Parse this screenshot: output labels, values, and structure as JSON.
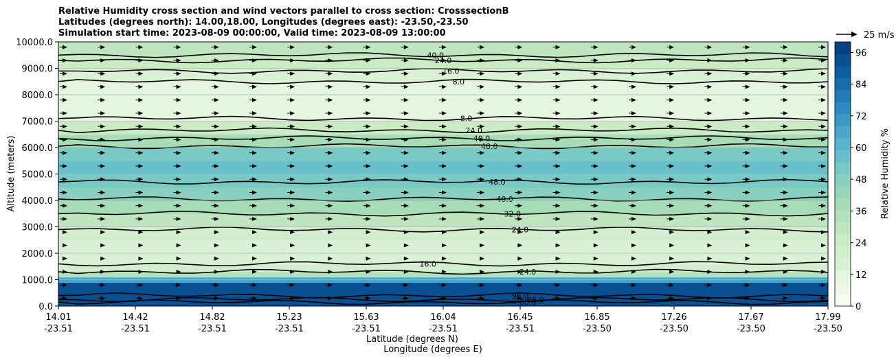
{
  "title_lines": [
    "Relative Humidity cross section and wind vectors parallel to cross section: CrosssectionB",
    "Latitudes (degrees north): 14.00,18.00, Longitudes (degrees east): -23.50,-23.50",
    "Simulation start time: 2023-08-09 00:00:00, Valid time: 2023-08-09 13:00:00"
  ],
  "chart_data": {
    "type": "heatmap",
    "title": "Relative Humidity cross section and wind vectors parallel to cross section: CrosssectionB",
    "xlabel": "Latitude (degrees N)",
    "xlabel2": "Longitude (degrees E)",
    "ylabel": "Altitude (meters)",
    "x_ticks": [
      {
        "lat": "14.01",
        "lon": "-23.51"
      },
      {
        "lat": "14.42",
        "lon": "-23.51"
      },
      {
        "lat": "14.82",
        "lon": "-23.51"
      },
      {
        "lat": "15.23",
        "lon": "-23.51"
      },
      {
        "lat": "15.63",
        "lon": "-23.51"
      },
      {
        "lat": "16.04",
        "lon": "-23.51"
      },
      {
        "lat": "16.45",
        "lon": "-23.51"
      },
      {
        "lat": "16.85",
        "lon": "-23.50"
      },
      {
        "lat": "17.26",
        "lon": "-23.50"
      },
      {
        "lat": "17.67",
        "lon": "-23.50"
      },
      {
        "lat": "17.99",
        "lon": "-23.50"
      }
    ],
    "xlim": [
      14.01,
      17.99
    ],
    "y_ticks": [
      "0.0",
      "1000.0",
      "2000.0",
      "3000.0",
      "4000.0",
      "5000.0",
      "6000.0",
      "7000.0",
      "8000.0",
      "9000.0",
      "10000.0"
    ],
    "ylim": [
      0,
      10000
    ],
    "colorbar": {
      "label": "Relative Humidity %",
      "ticks": [
        "0",
        "12",
        "24",
        "36",
        "48",
        "60",
        "72",
        "84",
        "96"
      ],
      "range": [
        0,
        100
      ],
      "step": 4,
      "colors": [
        "#f7fcf0",
        "#eef8e8",
        "#e5f5df",
        "#dbf1d5",
        "#d3eece",
        "#cbebc5",
        "#c0e6c0",
        "#b3e1bb",
        "#a6dcb6",
        "#98d6bb",
        "#89d0be",
        "#79c9c6",
        "#69c0cb",
        "#59b5cf",
        "#4aa7cc",
        "#3b99c6",
        "#2d8ac0",
        "#207bb7",
        "#156cae",
        "#0a5ca3",
        "#085092",
        "#084081"
      ]
    },
    "wind_key": {
      "label": "25 m/s",
      "value": 25
    },
    "humidity_profile": [
      {
        "alt": 0,
        "rh": 92
      },
      {
        "alt": 300,
        "rh": 94
      },
      {
        "alt": 600,
        "rh": 96
      },
      {
        "alt": 900,
        "rh": 90
      },
      {
        "alt": 1100,
        "rh": 40
      },
      {
        "alt": 1300,
        "rh": 24
      },
      {
        "alt": 1600,
        "rh": 18
      },
      {
        "alt": 2000,
        "rh": 16
      },
      {
        "alt": 2500,
        "rh": 18
      },
      {
        "alt": 3000,
        "rh": 24
      },
      {
        "alt": 3500,
        "rh": 32
      },
      {
        "alt": 4000,
        "rh": 42
      },
      {
        "alt": 4500,
        "rh": 50
      },
      {
        "alt": 5000,
        "rh": 58
      },
      {
        "alt": 5500,
        "rh": 60
      },
      {
        "alt": 6000,
        "rh": 46
      },
      {
        "alt": 6500,
        "rh": 30
      },
      {
        "alt": 7000,
        "rh": 16
      },
      {
        "alt": 7500,
        "rh": 10
      },
      {
        "alt": 8000,
        "rh": 9
      },
      {
        "alt": 8500,
        "rh": 12
      },
      {
        "alt": 9000,
        "rh": 20
      },
      {
        "alt": 9500,
        "rh": 26
      },
      {
        "alt": 10000,
        "rh": 32
      }
    ],
    "contours": [
      {
        "label": "16.0",
        "alt": 1600
      },
      {
        "label": "24.0",
        "alt": 1300
      },
      {
        "label": "24.0",
        "alt": 2900
      },
      {
        "label": "32.0",
        "alt": 3500
      },
      {
        "label": "40.0",
        "alt": 4050
      },
      {
        "label": "48.0",
        "alt": 4700
      },
      {
        "label": "48.0",
        "alt": 6050
      },
      {
        "label": "40.0",
        "alt": 6350
      },
      {
        "label": "24.0",
        "alt": 6650
      },
      {
        "label": "8.0",
        "alt": 7100
      },
      {
        "label": "8.0",
        "alt": 8500
      },
      {
        "label": "16.0",
        "alt": 8900
      },
      {
        "label": "24.0",
        "alt": 9300
      },
      {
        "label": "40.0",
        "alt": 9500
      },
      {
        "label": "88.0",
        "alt": 250
      },
      {
        "label": "80.0",
        "alt": 150
      },
      {
        "label": "96.0",
        "alt": 400
      }
    ]
  }
}
